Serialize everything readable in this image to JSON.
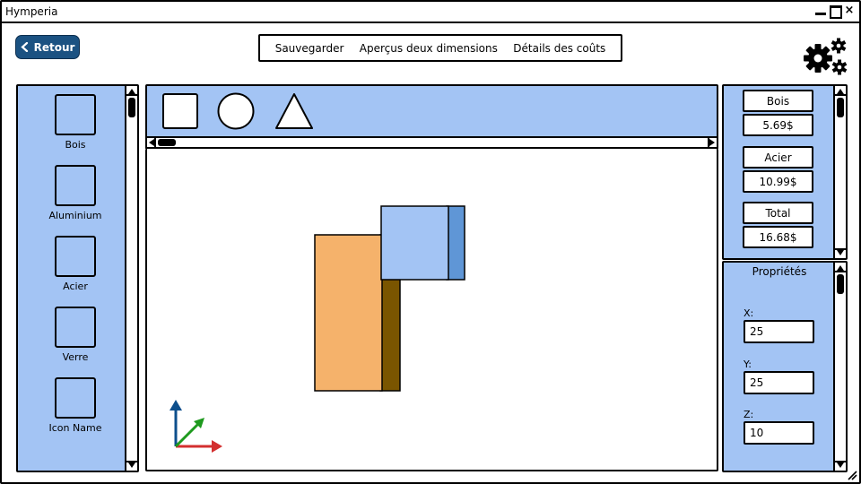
{
  "window": {
    "title": "Hymperia"
  },
  "header": {
    "back_label": "Retour",
    "menu": [
      {
        "label": "Sauvegarder"
      },
      {
        "label": "Aperçus deux dimensions"
      },
      {
        "label": "Détails des coûts"
      }
    ],
    "settings_icon": "gears-icon"
  },
  "materials": [
    {
      "label": "Bois"
    },
    {
      "label": "Aluminium"
    },
    {
      "label": "Acier"
    },
    {
      "label": "Verre"
    },
    {
      "label": "Icon Name"
    }
  ],
  "shapes": [
    "square-icon",
    "circle-icon",
    "triangle-icon"
  ],
  "costs": [
    {
      "label": "Bois",
      "value": "5.69$"
    },
    {
      "label": "Acier",
      "value": "10.99$"
    },
    {
      "label": "Total",
      "value": "16.68$"
    }
  ],
  "properties": {
    "title": "Propriétés",
    "x": {
      "label": "X:",
      "value": "25"
    },
    "y": {
      "label": "Y:",
      "value": "25"
    },
    "z": {
      "label": "Z:",
      "value": "10"
    }
  },
  "colors": {
    "panel": "#a3c4f4",
    "back_button": "#1b5282",
    "wood_front": "#f5b26b",
    "wood_side": "#7a5500",
    "steel_front": "#a3c4f4",
    "steel_side": "#5f96d6",
    "axis_x": "#d32f2f",
    "axis_y": "#0d4f8c",
    "axis_z": "#1e9a1e"
  }
}
